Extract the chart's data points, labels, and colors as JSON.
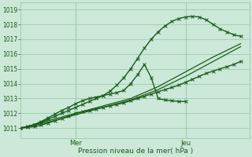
{
  "background_color": "#cce8d8",
  "grid_color": "#99ccaa",
  "line_color": "#1a5c1a",
  "ylabel_ticks": [
    1011,
    1012,
    1013,
    1014,
    1015,
    1016,
    1017,
    1018,
    1019
  ],
  "ymin": 1010.3,
  "ymax": 1019.5,
  "xmin": 0,
  "xmax": 100,
  "x_day_labels": [
    [
      "Mer",
      24
    ],
    [
      "Jeu",
      72
    ]
  ],
  "xlabel": "Pression niveau de la mer( hPa )",
  "series": [
    {
      "x": [
        0,
        3,
        6,
        9,
        12,
        15,
        18,
        21,
        24,
        27,
        30,
        33,
        36,
        39,
        42,
        45,
        48,
        51,
        54,
        57,
        60,
        63,
        66,
        69,
        72,
        75,
        78,
        81,
        84,
        87,
        90,
        93,
        96
      ],
      "y": [
        1011.0,
        1011.1,
        1011.2,
        1011.4,
        1011.6,
        1011.8,
        1012.0,
        1012.2,
        1012.4,
        1012.6,
        1012.8,
        1013.0,
        1013.2,
        1013.5,
        1013.9,
        1014.4,
        1015.0,
        1015.7,
        1016.4,
        1017.0,
        1017.5,
        1017.9,
        1018.2,
        1018.4,
        1018.5,
        1018.55,
        1018.5,
        1018.3,
        1018.0,
        1017.7,
        1017.5,
        1017.3,
        1017.2
      ],
      "marker": "x",
      "linewidth": 1.0,
      "markersize": 2.5
    },
    {
      "x": [
        0,
        12,
        24,
        36,
        48,
        60,
        72,
        84,
        96
      ],
      "y": [
        1011.0,
        1011.5,
        1012.0,
        1012.5,
        1013.0,
        1013.8,
        1014.8,
        1015.8,
        1016.7
      ],
      "marker": null,
      "linewidth": 0.9,
      "markersize": 0
    },
    {
      "x": [
        0,
        12,
        24,
        36,
        48,
        60,
        72,
        84,
        96
      ],
      "y": [
        1011.0,
        1011.4,
        1011.9,
        1012.4,
        1012.9,
        1013.6,
        1014.5,
        1015.5,
        1016.5
      ],
      "marker": null,
      "linewidth": 0.9,
      "markersize": 0
    },
    {
      "x": [
        0,
        3,
        6,
        9,
        12,
        15,
        18,
        21,
        24,
        27,
        30,
        33,
        36,
        39,
        42,
        45,
        48,
        51,
        54,
        57,
        60,
        63,
        66,
        69,
        72,
        75,
        78,
        81,
        84,
        87,
        90,
        93,
        96
      ],
      "y": [
        1011.0,
        1011.05,
        1011.1,
        1011.2,
        1011.35,
        1011.5,
        1011.65,
        1011.8,
        1012.0,
        1012.1,
        1012.2,
        1012.3,
        1012.4,
        1012.5,
        1012.6,
        1012.7,
        1012.85,
        1013.0,
        1013.15,
        1013.3,
        1013.45,
        1013.6,
        1013.75,
        1013.9,
        1014.1,
        1014.3,
        1014.5,
        1014.7,
        1014.85,
        1015.0,
        1015.15,
        1015.3,
        1015.5
      ],
      "marker": "x",
      "linewidth": 1.0,
      "markersize": 2.5
    },
    {
      "x": [
        0,
        3,
        6,
        9,
        12,
        15,
        18,
        21,
        24,
        27,
        30,
        33,
        36,
        39,
        42,
        45,
        48,
        51,
        54,
        57,
        60,
        63,
        66,
        69,
        72
      ],
      "y": [
        1011.0,
        1011.1,
        1011.25,
        1011.45,
        1011.7,
        1011.95,
        1012.2,
        1012.4,
        1012.65,
        1012.85,
        1013.0,
        1013.1,
        1013.2,
        1013.3,
        1013.4,
        1013.55,
        1014.0,
        1014.6,
        1015.3,
        1014.4,
        1013.0,
        1012.9,
        1012.85,
        1012.8,
        1012.8
      ],
      "marker": "x",
      "linewidth": 1.0,
      "markersize": 2.5
    }
  ]
}
